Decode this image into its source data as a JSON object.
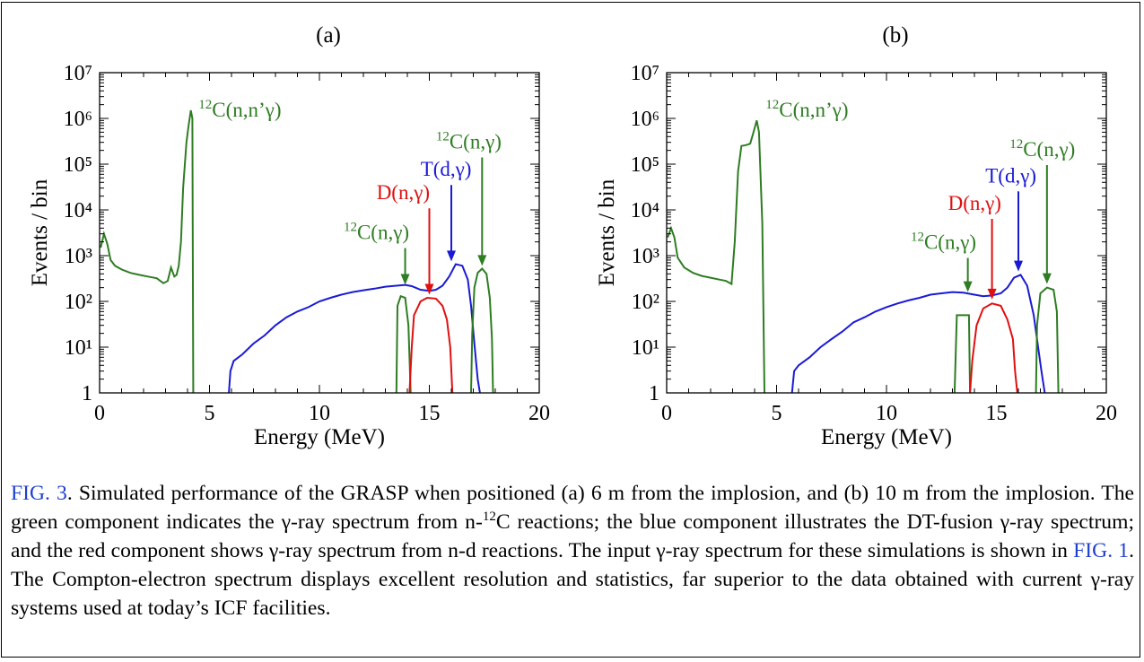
{
  "colors": {
    "green": "#2e7d22",
    "blue": "#1a1ad6",
    "red": "#e01010",
    "ref": "#1f3fd0"
  },
  "chart_data": [
    {
      "type": "line",
      "title": "(a)",
      "xlabel": "Energy (MeV)",
      "ylabel": "Events / bin",
      "xlim": [
        0,
        20
      ],
      "ylim": [
        1,
        10000000
      ],
      "yscale": "log",
      "x_ticks": [
        "0",
        "5",
        "10",
        "15",
        "20"
      ],
      "y_ticks": [
        "1",
        "10¹",
        "10²",
        "10³",
        "10⁴",
        "10⁵",
        "10⁶",
        "10⁷"
      ],
      "series": [
        {
          "color": "green",
          "points": [
            [
              0.05,
              1500
            ],
            [
              0.2,
              3000
            ],
            [
              0.35,
              1800
            ],
            [
              0.5,
              800
            ],
            [
              0.7,
              600
            ],
            [
              1.0,
              500
            ],
            [
              1.4,
              420
            ],
            [
              1.8,
              380
            ],
            [
              2.2,
              350
            ],
            [
              2.6,
              320
            ],
            [
              2.9,
              250
            ],
            [
              3.1,
              280
            ],
            [
              3.25,
              550
            ],
            [
              3.4,
              350
            ],
            [
              3.5,
              380
            ],
            [
              3.6,
              600
            ],
            [
              3.7,
              2000
            ],
            [
              3.8,
              30000
            ],
            [
              3.95,
              300000
            ],
            [
              4.05,
              700000
            ],
            [
              4.15,
              1500000
            ],
            [
              4.22,
              1000000
            ],
            [
              4.26,
              1
            ]
          ]
        },
        {
          "color": "blue",
          "points": [
            [
              5.88,
              1
            ],
            [
              5.95,
              3
            ],
            [
              6.1,
              5
            ],
            [
              6.5,
              7
            ],
            [
              7.0,
              12
            ],
            [
              7.5,
              18
            ],
            [
              8.0,
              30
            ],
            [
              8.5,
              45
            ],
            [
              9.0,
              60
            ],
            [
              9.5,
              75
            ],
            [
              10.0,
              100
            ],
            [
              10.5,
              120
            ],
            [
              11.0,
              140
            ],
            [
              11.5,
              160
            ],
            [
              12.0,
              175
            ],
            [
              12.5,
              190
            ],
            [
              13.0,
              210
            ],
            [
              13.5,
              220
            ],
            [
              13.9,
              230
            ],
            [
              14.2,
              215
            ],
            [
              14.6,
              180
            ],
            [
              15.0,
              170
            ],
            [
              15.3,
              180
            ],
            [
              15.6,
              220
            ],
            [
              15.9,
              350
            ],
            [
              16.2,
              650
            ],
            [
              16.5,
              600
            ],
            [
              16.75,
              300
            ],
            [
              16.9,
              80
            ],
            [
              17.05,
              12
            ],
            [
              17.2,
              2
            ],
            [
              17.3,
              1
            ]
          ]
        },
        {
          "color": "green",
          "points": [
            [
              13.5,
              1
            ],
            [
              13.55,
              80
            ],
            [
              13.7,
              130
            ],
            [
              13.9,
              120
            ],
            [
              14.05,
              30
            ],
            [
              14.15,
              1
            ]
          ]
        },
        {
          "color": "red",
          "points": [
            [
              14.1,
              1
            ],
            [
              14.2,
              10
            ],
            [
              14.3,
              50
            ],
            [
              14.6,
              100
            ],
            [
              14.9,
              120
            ],
            [
              15.3,
              115
            ],
            [
              15.6,
              80
            ],
            [
              15.8,
              40
            ],
            [
              15.95,
              10
            ],
            [
              16.05,
              1
            ]
          ]
        },
        {
          "color": "green",
          "points": [
            [
              16.9,
              1
            ],
            [
              16.95,
              20
            ],
            [
              17.05,
              200
            ],
            [
              17.2,
              420
            ],
            [
              17.4,
              520
            ],
            [
              17.6,
              400
            ],
            [
              17.75,
              120
            ],
            [
              17.85,
              15
            ],
            [
              17.9,
              1
            ]
          ]
        }
      ],
      "annotations": [
        {
          "pre": "12",
          "text": "C(n,n’γ)",
          "color": "green",
          "x": 4.5,
          "y": 1100000
        },
        {
          "pre": "12",
          "text": "C(n,γ)",
          "color": "green",
          "x": 11.1,
          "y": 2300,
          "arrow": [
            13.9,
            230
          ]
        },
        {
          "pre": "",
          "text": "D(n,γ)",
          "color": "red",
          "x": 12.6,
          "y": 17000,
          "arrow": [
            15.0,
            140
          ]
        },
        {
          "pre": "",
          "text": "T(d,γ)",
          "color": "blue",
          "x": 14.6,
          "y": 55000,
          "arrow": [
            16.0,
            750
          ]
        },
        {
          "pre": "12",
          "text": "C(n,γ)",
          "color": "green",
          "x": 15.3,
          "y": 220000,
          "arrow": [
            17.4,
            600
          ]
        }
      ]
    },
    {
      "type": "line",
      "title": "(b)",
      "xlabel": "Energy (MeV)",
      "ylabel": "Events / bin",
      "xlim": [
        0,
        20
      ],
      "ylim": [
        1,
        10000000
      ],
      "yscale": "log",
      "x_ticks": [
        "0",
        "5",
        "10",
        "15",
        "20"
      ],
      "y_ticks": [
        "1",
        "10¹",
        "10²",
        "10³",
        "10⁴",
        "10⁵",
        "10⁶",
        "10⁷"
      ],
      "series": [
        {
          "color": "green",
          "points": [
            [
              0.05,
              2500
            ],
            [
              0.2,
              4000
            ],
            [
              0.35,
              2500
            ],
            [
              0.5,
              900
            ],
            [
              0.8,
              550
            ],
            [
              1.2,
              420
            ],
            [
              1.6,
              360
            ],
            [
              2.0,
              330
            ],
            [
              2.4,
              300
            ],
            [
              2.7,
              280
            ],
            [
              2.95,
              240
            ],
            [
              3.1,
              2000
            ],
            [
              3.25,
              70000
            ],
            [
              3.4,
              250000
            ],
            [
              3.6,
              260000
            ],
            [
              3.8,
              280000
            ],
            [
              3.95,
              500000
            ],
            [
              4.1,
              900000
            ],
            [
              4.2,
              500000
            ],
            [
              4.35,
              5000
            ],
            [
              4.45,
              1
            ]
          ]
        },
        {
          "color": "blue",
          "points": [
            [
              5.7,
              1
            ],
            [
              5.8,
              3
            ],
            [
              6.0,
              4
            ],
            [
              6.5,
              6
            ],
            [
              7.0,
              10
            ],
            [
              7.5,
              15
            ],
            [
              8.0,
              22
            ],
            [
              8.5,
              35
            ],
            [
              9.0,
              45
            ],
            [
              9.5,
              60
            ],
            [
              10.0,
              75
            ],
            [
              10.5,
              90
            ],
            [
              11.0,
              105
            ],
            [
              11.5,
              120
            ],
            [
              12.0,
              140
            ],
            [
              12.5,
              150
            ],
            [
              13.0,
              160
            ],
            [
              13.5,
              155
            ],
            [
              14.0,
              140
            ],
            [
              14.4,
              130
            ],
            [
              14.8,
              135
            ],
            [
              15.2,
              150
            ],
            [
              15.5,
              200
            ],
            [
              15.8,
              330
            ],
            [
              16.1,
              380
            ],
            [
              16.4,
              220
            ],
            [
              16.7,
              50
            ],
            [
              16.9,
              10
            ],
            [
              17.05,
              3
            ],
            [
              17.2,
              1
            ]
          ]
        },
        {
          "color": "green",
          "points": [
            [
              13.1,
              1
            ],
            [
              13.2,
              50
            ],
            [
              13.5,
              50
            ],
            [
              13.75,
              50
            ],
            [
              13.8,
              1
            ]
          ]
        },
        {
          "color": "red",
          "points": [
            [
              13.8,
              1
            ],
            [
              13.9,
              5
            ],
            [
              14.1,
              30
            ],
            [
              14.4,
              70
            ],
            [
              14.8,
              90
            ],
            [
              15.2,
              80
            ],
            [
              15.5,
              40
            ],
            [
              15.75,
              15
            ],
            [
              15.85,
              3
            ],
            [
              15.95,
              1
            ]
          ]
        },
        {
          "color": "green",
          "points": [
            [
              16.8,
              1
            ],
            [
              16.85,
              30
            ],
            [
              17.0,
              150
            ],
            [
              17.3,
              200
            ],
            [
              17.6,
              180
            ],
            [
              17.75,
              60
            ],
            [
              17.82,
              1
            ]
          ]
        }
      ],
      "annotations": [
        {
          "pre": "12",
          "text": "C(n,n’γ)",
          "color": "green",
          "x": 4.5,
          "y": 1100000
        },
        {
          "pre": "12",
          "text": "C(n,γ)",
          "color": "green",
          "x": 11.1,
          "y": 1400,
          "arrow": [
            13.7,
            160
          ]
        },
        {
          "pre": "",
          "text": "D(n,γ)",
          "color": "red",
          "x": 12.8,
          "y": 10000,
          "arrow": [
            14.8,
            110
          ]
        },
        {
          "pre": "",
          "text": "T(d,γ)",
          "color": "blue",
          "x": 14.5,
          "y": 40000,
          "arrow": [
            16.0,
            450
          ]
        },
        {
          "pre": "12",
          "text": "C(n,γ)",
          "color": "green",
          "x": 15.6,
          "y": 150000,
          "arrow": [
            17.3,
            240
          ]
        }
      ]
    }
  ],
  "caption": {
    "fig_ref": "FIG. 3",
    "t1": ". Simulated performance of the GRASP when positioned (a) 6 m from the implosion, and (b) 10 m from the implosion. The green component indicates the γ-ray spectrum from n-",
    "sup": "12",
    "t2": "C reactions; the blue component illustrates the DT-fusion γ-ray spectrum; and the red component shows γ-ray spectrum from n-d reactions. The input γ-ray spectrum for these simulations is shown in ",
    "ref2": "FIG. 1",
    "t3": ". The Compton-electron spectrum displays excellent resolution and statistics, far superior to the data obtained with current γ-ray systems used at today’s ICF facilities."
  }
}
